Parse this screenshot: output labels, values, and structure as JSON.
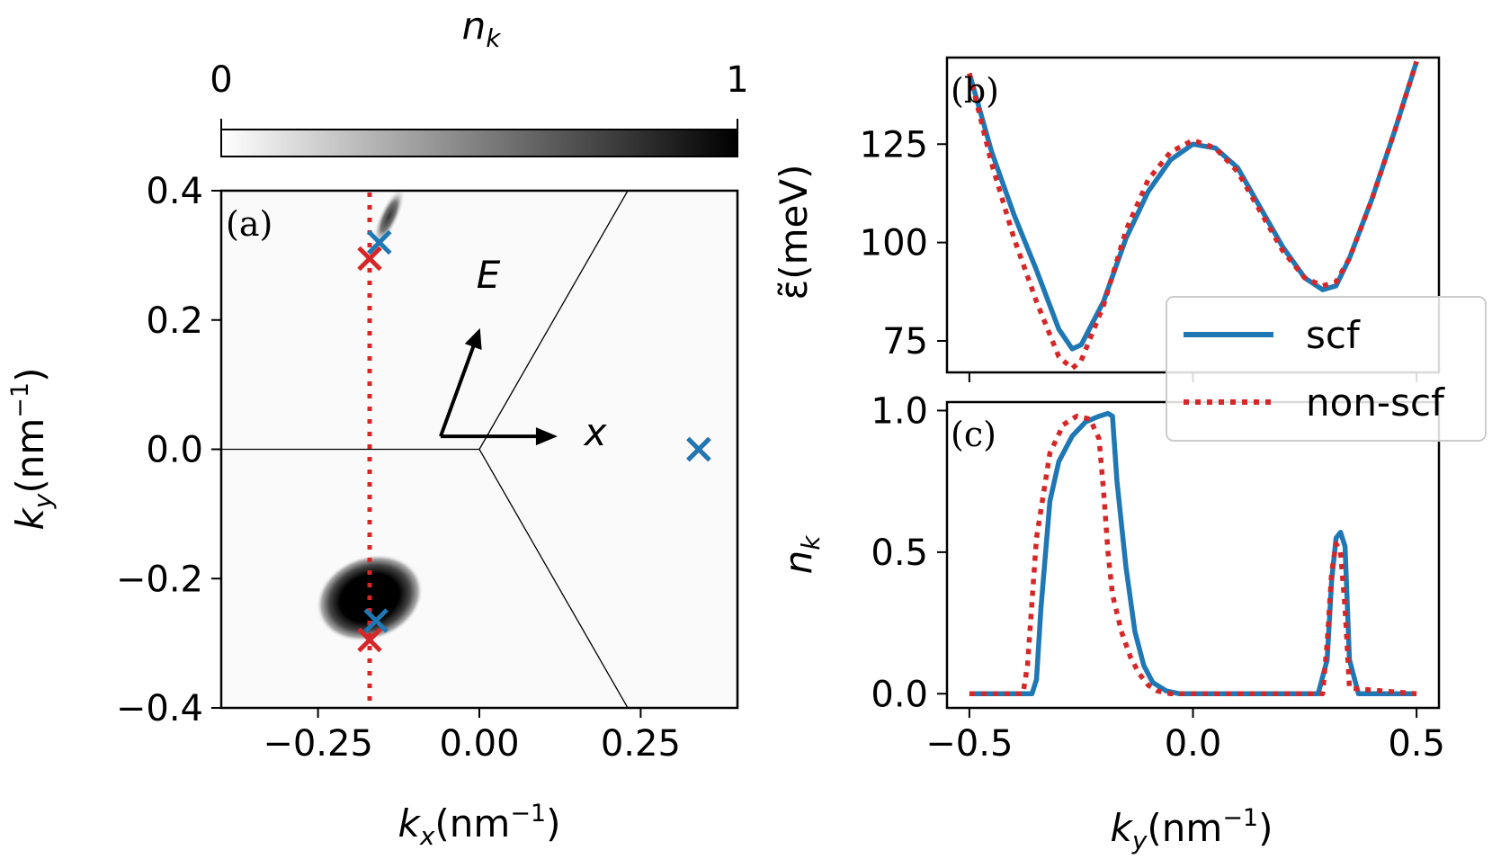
{
  "chart_data": [
    {
      "panel": "(a)",
      "type": "heatmap",
      "colorbar": {
        "label": "n",
        "label_sub": "k",
        "min_label": "0",
        "max_label": "1",
        "range": [
          0,
          1
        ]
      },
      "xlabel": "k",
      "xlabel_sub": "x",
      "xlabel_unit": "(nm",
      "xlabel_exp": "−1",
      "xlabel_close": ")",
      "ylabel": "k",
      "ylabel_sub": "y",
      "ylabel_unit": "(nm",
      "ylabel_exp": "−1",
      "ylabel_close": ")",
      "xlim": [
        -0.4,
        0.4
      ],
      "ylim": [
        -0.4,
        0.4
      ],
      "xticks": [
        -0.25,
        0.0,
        0.25
      ],
      "xtick_labels": [
        "−0.25",
        "0.00",
        "0.25"
      ],
      "yticks": [
        -0.4,
        -0.2,
        0.0,
        0.2,
        0.4
      ],
      "ytick_labels": [
        "−0.4",
        "−0.2",
        "0.0",
        "0.2",
        "0.4"
      ],
      "occupation_blobs": [
        {
          "kx": -0.17,
          "ky": -0.23,
          "rx": 0.085,
          "ry": 0.065,
          "peak": 1.0
        },
        {
          "kx": -0.14,
          "ky": 0.36,
          "rx": 0.015,
          "ry": 0.05,
          "peak": 0.75
        }
      ],
      "cut_line_kx": -0.17,
      "zone_boundary": [
        [
          [
            -0.4,
            0.0
          ],
          [
            0.0,
            0.0
          ]
        ],
        [
          [
            0.0,
            0.0
          ],
          [
            0.23,
            0.4
          ]
        ],
        [
          [
            0.0,
            0.0
          ],
          [
            0.23,
            -0.4
          ]
        ]
      ],
      "markers": {
        "scf": [
          [
            -0.155,
            0.32
          ],
          [
            -0.16,
            -0.265
          ],
          [
            0.34,
            0.0
          ]
        ],
        "non-scf": [
          [
            -0.17,
            0.295
          ],
          [
            -0.17,
            -0.295
          ],
          [
            0.34,
            0.0
          ]
        ]
      },
      "arrows": {
        "E_label": "E",
        "x_label": "x",
        "E_direction_deg": 70,
        "x_direction_deg": 0
      }
    },
    {
      "panel": "(b)",
      "type": "line",
      "ylabel": "ε̃(meV)",
      "xlim": [
        -0.55,
        0.55
      ],
      "ylim": [
        67,
        147
      ],
      "yticks": [
        75,
        100,
        125
      ],
      "ytick_labels": [
        "75",
        "100",
        "125"
      ],
      "xticks": [
        -0.5,
        0.0,
        0.5
      ],
      "series": [
        {
          "name": "scf",
          "color": "#1f77b4",
          "style": "solid",
          "x": [
            -0.5,
            -0.45,
            -0.4,
            -0.35,
            -0.3,
            -0.27,
            -0.25,
            -0.2,
            -0.15,
            -0.1,
            -0.05,
            0.0,
            0.05,
            0.1,
            0.15,
            0.2,
            0.25,
            0.29,
            0.32,
            0.35,
            0.4,
            0.45,
            0.5
          ],
          "y": [
            143,
            123,
            107,
            93,
            78,
            73,
            74,
            85,
            101,
            113,
            121,
            125,
            124,
            119,
            109,
            99,
            91,
            88,
            89,
            96,
            111,
            128,
            146
          ]
        },
        {
          "name": "non-scf",
          "color": "#d62728",
          "style": "dotted",
          "x": [
            -0.5,
            -0.45,
            -0.4,
            -0.35,
            -0.3,
            -0.27,
            -0.25,
            -0.2,
            -0.15,
            -0.1,
            -0.05,
            0.0,
            0.05,
            0.1,
            0.15,
            0.2,
            0.25,
            0.29,
            0.32,
            0.35,
            0.4,
            0.45,
            0.5
          ],
          "y": [
            143,
            120,
            101,
            85,
            71,
            68,
            70,
            84,
            103,
            116,
            123,
            126,
            124,
            118,
            108,
            98,
            91,
            89,
            90,
            96,
            111,
            128,
            146
          ]
        }
      ],
      "legend": {
        "entries": [
          "scf",
          "non-scf"
        ],
        "placement": "right"
      }
    },
    {
      "panel": "(c)",
      "type": "line",
      "ylabel": "n",
      "ylabel_sub": "k",
      "xlabel": "k",
      "xlabel_sub": "y",
      "xlabel_unit": "(nm",
      "xlabel_exp": "−1",
      "xlabel_close": ")",
      "xlim": [
        -0.55,
        0.55
      ],
      "ylim": [
        -0.05,
        1.03
      ],
      "xticks": [
        -0.5,
        0.0,
        0.5
      ],
      "xtick_labels": [
        "−0.5",
        "0.0",
        "0.5"
      ],
      "yticks": [
        0.0,
        0.5,
        1.0
      ],
      "ytick_labels": [
        "0.0",
        "0.5",
        "1.0"
      ],
      "series": [
        {
          "name": "scf",
          "color": "#1f77b4",
          "style": "solid",
          "x": [
            -0.5,
            -0.36,
            -0.35,
            -0.34,
            -0.32,
            -0.3,
            -0.27,
            -0.24,
            -0.21,
            -0.19,
            -0.18,
            -0.17,
            -0.15,
            -0.13,
            -0.11,
            -0.09,
            -0.06,
            -0.03,
            0.0,
            0.28,
            0.3,
            0.31,
            0.32,
            0.33,
            0.34,
            0.35,
            0.37,
            0.5
          ],
          "y": [
            0,
            0,
            0.05,
            0.3,
            0.68,
            0.82,
            0.91,
            0.96,
            0.98,
            0.99,
            0.98,
            0.75,
            0.45,
            0.22,
            0.1,
            0.04,
            0.01,
            0,
            0,
            0,
            0.12,
            0.4,
            0.55,
            0.57,
            0.52,
            0.12,
            0,
            0
          ]
        },
        {
          "name": "non-scf",
          "color": "#d62728",
          "style": "dotted",
          "x": [
            -0.5,
            -0.38,
            -0.37,
            -0.35,
            -0.32,
            -0.29,
            -0.26,
            -0.23,
            -0.21,
            -0.2,
            -0.19,
            -0.18,
            -0.16,
            -0.14,
            -0.12,
            -0.1,
            -0.08,
            -0.05,
            -0.02,
            0.0,
            0.29,
            0.3,
            0.31,
            0.32,
            0.33,
            0.34,
            0.35,
            0.5
          ],
          "y": [
            0,
            0,
            0.1,
            0.55,
            0.85,
            0.95,
            0.98,
            0.97,
            0.9,
            0.72,
            0.5,
            0.35,
            0.22,
            0.13,
            0.07,
            0.03,
            0.01,
            0,
            0,
            0,
            0,
            0.18,
            0.43,
            0.53,
            0.5,
            0.3,
            0.02,
            0
          ]
        }
      ]
    }
  ]
}
